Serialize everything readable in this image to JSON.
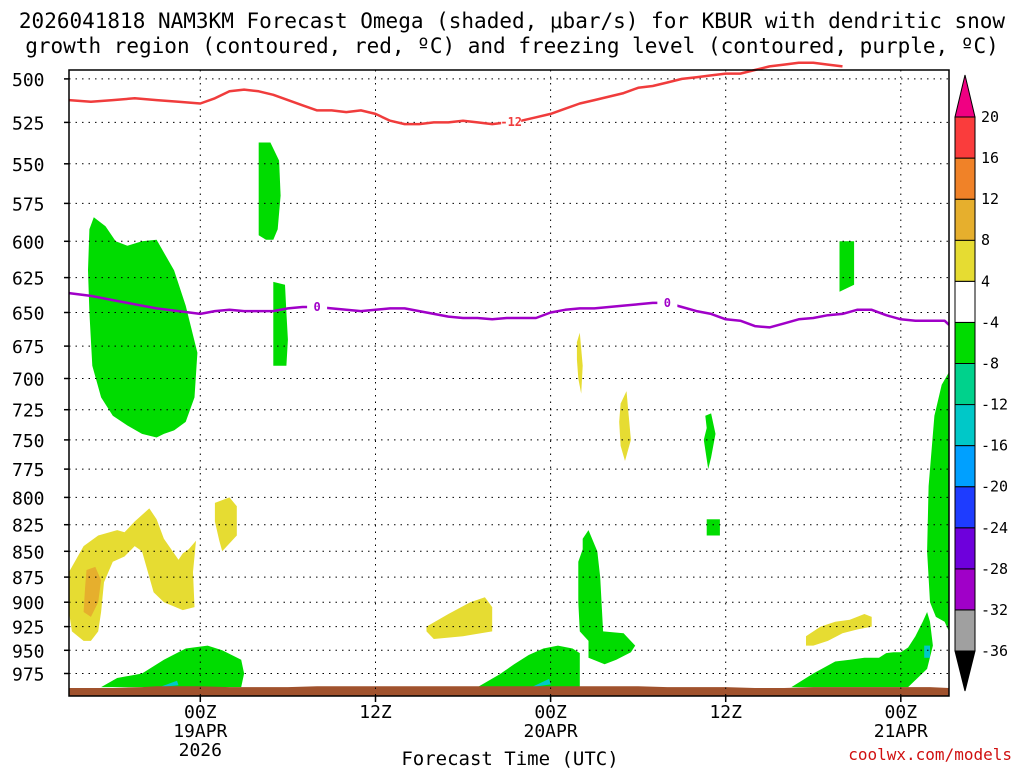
{
  "chart_data": {
    "type": "time-height cross section",
    "title_line1": "2026041818 NAM3KM Forecast Omega (shaded, μbar/s) for KBUR with dendritic snow",
    "title_line2": "growth region (contoured, red, ºC) and freezing level (contoured, purple, ºC)",
    "xlabel": "Forecast Time (UTC)",
    "x_units": "hours after 2026-04-18 18Z",
    "xlim": [
      -3.0,
      57.3
    ],
    "ylabel_units": "mb",
    "ylim": [
      1000,
      495
    ],
    "pressure_levels": [
      500,
      525,
      550,
      575,
      600,
      625,
      650,
      675,
      700,
      725,
      750,
      775,
      800,
      825,
      850,
      875,
      900,
      925,
      950,
      975
    ],
    "x_ticks": [
      {
        "hour": 6,
        "label": "00Z",
        "date": "19APR",
        "year": "2026"
      },
      {
        "hour": 18,
        "label": "12Z",
        "date": "",
        "year": ""
      },
      {
        "hour": 30,
        "label": "00Z",
        "date": "20APR",
        "year": ""
      },
      {
        "hour": 42,
        "label": "12Z",
        "date": "",
        "year": ""
      },
      {
        "hour": 54,
        "label": "00Z",
        "date": "21APR",
        "year": ""
      }
    ],
    "grid": true,
    "colorbar": {
      "levels": [
        -36,
        -32,
        -28,
        -24,
        -20,
        -16,
        -12,
        -8,
        -4,
        4,
        8,
        12,
        16,
        20
      ],
      "colors": [
        "#000000",
        "#a0a0a0",
        "#a000c8",
        "#6e00dc",
        "#1e3cff",
        "#00a0ff",
        "#00c8c8",
        "#00d28c",
        "#00dc00",
        "#ffffff",
        "#e6dc32",
        "#e6af2d",
        "#f08228",
        "#fa3c3c",
        "#f00082"
      ]
    },
    "contours": [
      {
        "name": "dendritic growth -12C",
        "label": "-12",
        "color": "#f03c3c",
        "x": [
          -3.0,
          -1.5,
          0.0,
          1.5,
          3.0,
          4.5,
          6.0,
          7.0,
          8.0,
          9.0,
          10.0,
          11.0,
          12.0,
          13.0,
          14.0,
          15.0,
          16.0,
          17.0,
          18.0,
          19.0,
          20.0,
          21.0,
          22.0,
          23.0,
          24.0,
          25.0,
          26.0,
          27.0,
          28.0,
          29.0,
          30.0,
          31.0,
          32.0,
          33.0,
          34.0,
          35.0,
          36.0,
          37.0,
          38.0,
          39.0,
          40.0,
          41.0,
          42.0,
          43.0,
          44.0,
          45.0,
          46.0,
          47.0,
          48.0,
          49.0,
          50.0
        ],
        "y": [
          512,
          513,
          512,
          511,
          512,
          513,
          514,
          511,
          507,
          506,
          507,
          509,
          512,
          515,
          518,
          518,
          519,
          518,
          520,
          524,
          526,
          526,
          525,
          525,
          524,
          525,
          526,
          525,
          524,
          522,
          520,
          517,
          514,
          512,
          510,
          508,
          505,
          504,
          502,
          500,
          499,
          498,
          497,
          497,
          495,
          493,
          492,
          491,
          491,
          492,
          493
        ]
      },
      {
        "name": "freezing level 0C",
        "label": "0",
        "color": "#a000c8",
        "x": [
          -3.0,
          -1.5,
          0.0,
          1.5,
          3.0,
          4.5,
          6.0,
          7.0,
          8.0,
          9.0,
          10.0,
          11.0,
          12.0,
          13.0,
          14.0,
          15.0,
          16.0,
          17.0,
          18.0,
          19.0,
          20.0,
          21.0,
          22.0,
          23.0,
          24.0,
          25.0,
          26.0,
          27.0,
          28.0,
          29.0,
          30.0,
          31.0,
          32.0,
          33.0,
          34.0,
          35.0,
          36.0,
          37.0,
          38.0,
          39.0,
          40.0,
          41.0,
          42.0,
          43.0,
          44.0,
          45.0,
          46.0,
          47.0,
          48.0,
          49.0,
          50.0,
          51.0,
          52.0,
          53.0,
          54.0,
          55.0,
          56.0,
          57.0,
          57.3
        ],
        "y": [
          636,
          638,
          641,
          644,
          647,
          649,
          651,
          649,
          648,
          649,
          649,
          649,
          647,
          646,
          646,
          647,
          648,
          649,
          648,
          647,
          647,
          649,
          651,
          653,
          654,
          654,
          655,
          654,
          654,
          654,
          650,
          648,
          647,
          647,
          646,
          645,
          644,
          643,
          643,
          646,
          649,
          651,
          655,
          656,
          660,
          661,
          658,
          655,
          654,
          652,
          651,
          648,
          648,
          652,
          655,
          656,
          656,
          656,
          659
        ]
      }
    ],
    "shaded_regions": [
      {
        "omega_bin": "-8 to -4",
        "color": "#00dc00",
        "x": [
          -1.6,
          -1.3,
          -0.5,
          0.2,
          1.0,
          2.0,
          3.0,
          4.2,
          5.0,
          5.8,
          5.6,
          5.0,
          4.2,
          3.5,
          3.0,
          2.0,
          1.0,
          0.0,
          -0.8,
          -1.4,
          -1.6,
          -1.7
        ],
        "y": [
          592,
          584,
          590,
          600,
          603,
          600,
          599,
          620,
          645,
          680,
          715,
          735,
          742,
          745,
          748,
          745,
          738,
          730,
          715,
          690,
          650,
          620
        ]
      },
      {
        "omega_bin": "-8 to -4",
        "color": "#00dc00",
        "x": [
          10.0,
          10.8,
          11.4,
          11.5,
          11.3,
          11.0,
          10.5,
          10.0,
          10.0
        ],
        "y": [
          537,
          537,
          548,
          570,
          592,
          599,
          599,
          596,
          560
        ]
      },
      {
        "omega_bin": "-8 to -4",
        "color": "#00dc00",
        "x": [
          11.0,
          11.8,
          11.9,
          12.0,
          11.9,
          11.0,
          11.0
        ],
        "y": [
          628,
          630,
          650,
          670,
          690,
          690,
          650
        ]
      },
      {
        "omega_bin": "-8 to -4",
        "color": "#00dc00",
        "x": [
          49.8,
          50.8,
          50.8,
          50.8,
          49.8,
          49.8
        ],
        "y": [
          600,
          600,
          615,
          630,
          635,
          620
        ]
      },
      {
        "omega_bin": "-8 to -4",
        "color": "#00dc00",
        "x": [
          40.6,
          41.0,
          41.3,
          41.0,
          40.8,
          40.5,
          40.7
        ],
        "y": [
          730,
          728,
          745,
          765,
          775,
          750,
          740
        ]
      },
      {
        "omega_bin": "-8 to -4",
        "color": "#00dc00",
        "x": [
          40.7,
          41.6,
          41.6,
          40.7,
          40.7
        ],
        "y": [
          820,
          820,
          835,
          835,
          828
        ]
      },
      {
        "omega_bin": "-8 to -4",
        "color": "#00dc00",
        "x": [
          57.3,
          56.8,
          56.3,
          55.9,
          55.8,
          56.0,
          56.4,
          57.0,
          57.3
        ],
        "y": [
          695,
          705,
          730,
          790,
          850,
          900,
          915,
          920,
          930
        ]
      },
      {
        "omega_bin": "-8 to -4",
        "color": "#00dc00",
        "x": [
          32.2,
          32.6,
          33.2,
          33.4,
          33.6,
          35.0,
          35.8,
          35.5,
          34.5,
          33.7,
          32.6,
          32.6,
          32.0,
          31.9,
          31.9,
          32.2
        ],
        "y": [
          838,
          830,
          850,
          875,
          930,
          932,
          945,
          952,
          960,
          965,
          958,
          940,
          930,
          900,
          860,
          848
        ]
      },
      {
        "omega_bin": "-8 to -4",
        "color": "#00dc00",
        "x": [
          25.0,
          26.5,
          27.5,
          28.5,
          29.5,
          30.5,
          31.5,
          32.0,
          32.0,
          29.0,
          27.0
        ],
        "y": [
          990,
          976,
          965,
          955,
          948,
          945,
          948,
          953,
          990,
          990,
          990
        ]
      },
      {
        "omega_bin": "-8 to -4",
        "color": "#00dc00",
        "x": [
          -0.8,
          0.3,
          2.0,
          3.5,
          5.0,
          6.5,
          7.5,
          8.8,
          9.0,
          8.8,
          -0.8
        ],
        "y": [
          990,
          980,
          975,
          960,
          948,
          945,
          950,
          960,
          975,
          990,
          990
        ]
      },
      {
        "omega_bin": "-8 to -4",
        "color": "#00dc00",
        "x": [
          46.5,
          48.0,
          49.5,
          50.5,
          51.5,
          52.5,
          53.0,
          53.5,
          54.0,
          54.5,
          55.0,
          55.5,
          55.8,
          56.0,
          56.2,
          55.8,
          54.5,
          46.5
        ],
        "y": [
          990,
          975,
          962,
          960,
          958,
          958,
          953,
          952,
          952,
          947,
          935,
          920,
          910,
          920,
          945,
          970,
          990,
          990
        ]
      },
      {
        "omega_bin": "-12 to -8",
        "color": "#00c8c8",
        "x": [
          3.2,
          4.4,
          4.5,
          3.2
        ],
        "y": [
          990,
          983,
          988,
          990
        ]
      },
      {
        "omega_bin": "-12 to -8",
        "color": "#00c8c8",
        "x": [
          28.7,
          29.9,
          30.0,
          28.7
        ],
        "y": [
          990,
          981,
          987,
          990
        ]
      },
      {
        "omega_bin": "-12 to -8",
        "color": "#00c8c8",
        "x": [
          55.6,
          56.0,
          56.0,
          55.6
        ],
        "y": [
          945,
          945,
          958,
          958
        ]
      },
      {
        "omega_bin": "4 to 8",
        "color": "#e6dc32",
        "x": [
          -3.0,
          -2.0,
          -1.0,
          0.3,
          0.8,
          1.5,
          2.5,
          3.0,
          3.5,
          4.5,
          4.8,
          5.2,
          5.7,
          5.5,
          5.6,
          4.8,
          3.5,
          2.8,
          2.0,
          1.5,
          0.8,
          0.0,
          -0.6,
          -0.8,
          -1.0,
          -1.5,
          -2.0,
          -2.8,
          -3.0
        ],
        "y": [
          870,
          845,
          835,
          830,
          832,
          822,
          810,
          820,
          838,
          858,
          852,
          848,
          840,
          870,
          905,
          908,
          900,
          890,
          850,
          845,
          855,
          860,
          880,
          910,
          930,
          940,
          940,
          930,
          910
        ]
      },
      {
        "omega_bin": "4 to 8",
        "color": "#e6dc32",
        "x": [
          7.0,
          8.0,
          8.5,
          8.5,
          7.5,
          7.3,
          7.0,
          7.0
        ],
        "y": [
          805,
          800,
          808,
          835,
          850,
          840,
          822,
          815
        ]
      },
      {
        "omega_bin": "4 to 8",
        "color": "#e6dc32",
        "x": [
          31.8,
          32.0,
          32.2,
          32.1,
          31.9,
          31.8
        ],
        "y": [
          672,
          665,
          690,
          712,
          700,
          685
        ]
      },
      {
        "omega_bin": "4 to 8",
        "color": "#e6dc32",
        "x": [
          34.8,
          35.2,
          35.5,
          35.1,
          34.8,
          34.7
        ],
        "y": [
          720,
          710,
          750,
          768,
          755,
          735
        ]
      },
      {
        "omega_bin": "4 to 8",
        "color": "#e6dc32",
        "x": [
          21.5,
          23.0,
          24.5,
          25.5,
          26.0,
          26.0,
          24.0,
          22.0,
          21.5
        ],
        "y": [
          925,
          912,
          900,
          895,
          905,
          930,
          935,
          938,
          930
        ]
      },
      {
        "omega_bin": "4 to 8",
        "color": "#e6dc32",
        "x": [
          47.5,
          48.5,
          49.5,
          50.5,
          51.5,
          52.0,
          52.0,
          51.0,
          50.0,
          49.0,
          48.0,
          47.5
        ],
        "y": [
          935,
          925,
          920,
          918,
          912,
          915,
          925,
          928,
          932,
          940,
          945,
          945
        ]
      },
      {
        "omega_bin": "8 to 12",
        "color": "#e6af2d",
        "x": [
          -1.8,
          -1.2,
          -0.8,
          -1.0,
          -1.5,
          -2.0,
          -1.9
        ],
        "y": [
          868,
          865,
          878,
          900,
          915,
          910,
          885
        ]
      }
    ],
    "terrain": {
      "color": "#a0522d",
      "x": [
        -3.0,
        0.0,
        2.0,
        3.0,
        4.0,
        5.0,
        6.0,
        8.0,
        10.0,
        12.0,
        14.0,
        16.0,
        18.0,
        20.0,
        22.0,
        24.0,
        26.0,
        28.0,
        30.0,
        32.0,
        34.0,
        36.0,
        38.0,
        40.0,
        42.0,
        44.0,
        46.0,
        48.0,
        50.0,
        52.0,
        54.0,
        56.0,
        57.3
      ],
      "y": [
        991,
        991,
        990,
        989,
        989,
        989,
        989,
        990,
        990,
        990,
        989,
        989,
        989,
        989,
        989,
        989,
        989,
        989,
        989,
        989,
        989,
        989,
        990,
        990,
        990,
        991,
        991,
        990,
        990,
        990,
        990,
        990,
        991
      ]
    },
    "credit": "coolwx.com/models"
  }
}
